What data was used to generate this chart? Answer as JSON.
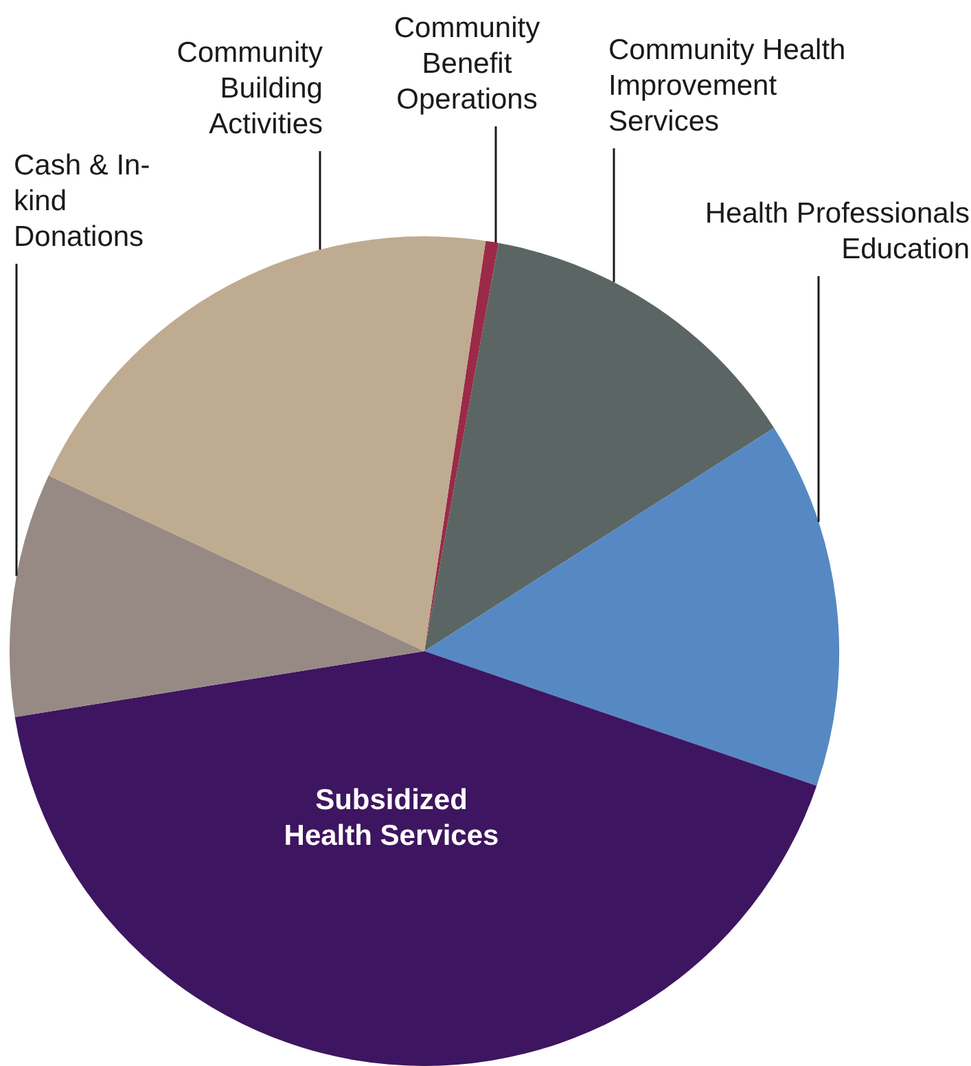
{
  "chart_data": {
    "type": "pie",
    "categories": [
      "Community Benefit Operations",
      "Community Health Improvement Services",
      "Health Professionals Education",
      "Subsidized Health Services",
      "Cash & In-kind Donations",
      "Community Building Activities"
    ],
    "values": [
      0.5,
      13.1,
      14.3,
      42.2,
      9.5,
      20.4
    ],
    "colors": [
      "#9b2a48",
      "#5b6664",
      "#5689c4",
      "#3e1560",
      "#978a84",
      "#bfab90"
    ]
  }
}
